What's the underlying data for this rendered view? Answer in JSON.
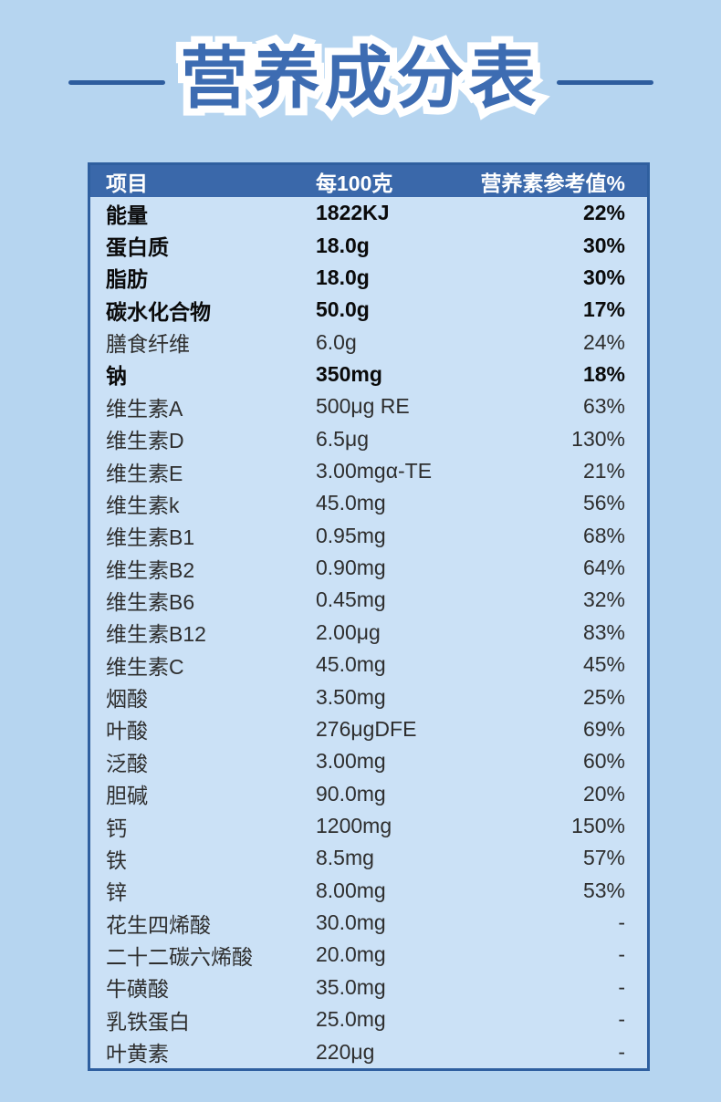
{
  "title": {
    "text": "营养成分表"
  },
  "colors": {
    "page_background": "#b6d5f0",
    "table_background": "#cbe1f6",
    "header_background": "#3a68aa",
    "table_border": "#2f5f9f",
    "title_text": "#3d6cb2",
    "title_outline": "#ffffff",
    "divider": "#2e5d9e"
  },
  "table": {
    "header": {
      "item": "项目",
      "per100g": "每100克",
      "nrv": "营养素参考值%"
    },
    "rows": [
      {
        "item": "能量",
        "per100g": "1822KJ",
        "nrv": "22%",
        "bold": true
      },
      {
        "item": "蛋白质",
        "per100g": "18.0g",
        "nrv": "30%",
        "bold": true
      },
      {
        "item": "脂肪",
        "per100g": "18.0g",
        "nrv": "30%",
        "bold": true
      },
      {
        "item": "碳水化合物",
        "per100g": "50.0g",
        "nrv": "17%",
        "bold": true
      },
      {
        "item": "膳食纤维",
        "per100g": "6.0g",
        "nrv": "24%",
        "bold": false
      },
      {
        "item": "钠",
        "per100g": "350mg",
        "nrv": "18%",
        "bold": true
      },
      {
        "item": "维生素A",
        "per100g": "500μg RE",
        "nrv": "63%",
        "bold": false
      },
      {
        "item": "维生素D",
        "per100g": "6.5μg",
        "nrv": "130%",
        "bold": false
      },
      {
        "item": "维生素E",
        "per100g": "3.00mgα-TE",
        "nrv": "21%",
        "bold": false
      },
      {
        "item": "维生素k",
        "per100g": "45.0mg",
        "nrv": "56%",
        "bold": false
      },
      {
        "item": "维生素B1",
        "per100g": "0.95mg",
        "nrv": "68%",
        "bold": false
      },
      {
        "item": "维生素B2",
        "per100g": "0.90mg",
        "nrv": "64%",
        "bold": false
      },
      {
        "item": "维生素B6",
        "per100g": "0.45mg",
        "nrv": "32%",
        "bold": false
      },
      {
        "item": "维生素B12",
        "per100g": "2.00μg",
        "nrv": "83%",
        "bold": false
      },
      {
        "item": "维生素C",
        "per100g": "45.0mg",
        "nrv": "45%",
        "bold": false
      },
      {
        "item": "烟酸",
        "per100g": "3.50mg",
        "nrv": "25%",
        "bold": false
      },
      {
        "item": "叶酸",
        "per100g": "276μgDFE",
        "nrv": "69%",
        "bold": false
      },
      {
        "item": "泛酸",
        "per100g": "3.00mg",
        "nrv": "60%",
        "bold": false
      },
      {
        "item": "胆碱",
        "per100g": "90.0mg",
        "nrv": "20%",
        "bold": false
      },
      {
        "item": "钙",
        "per100g": "1200mg",
        "nrv": "150%",
        "bold": false
      },
      {
        "item": "铁",
        "per100g": "8.5mg",
        "nrv": "57%",
        "bold": false
      },
      {
        "item": "锌",
        "per100g": "8.00mg",
        "nrv": "53%",
        "bold": false
      },
      {
        "item": "花生四烯酸",
        "per100g": "30.0mg",
        "nrv": "-",
        "bold": false
      },
      {
        "item": "二十二碳六烯酸",
        "per100g": "20.0mg",
        "nrv": "-",
        "bold": false
      },
      {
        "item": "牛磺酸",
        "per100g": "35.0mg",
        "nrv": "-",
        "bold": false
      },
      {
        "item": "乳铁蛋白",
        "per100g": "25.0mg",
        "nrv": "-",
        "bold": false
      },
      {
        "item": "叶黄素",
        "per100g": "220μg",
        "nrv": "-",
        "bold": false
      }
    ]
  }
}
